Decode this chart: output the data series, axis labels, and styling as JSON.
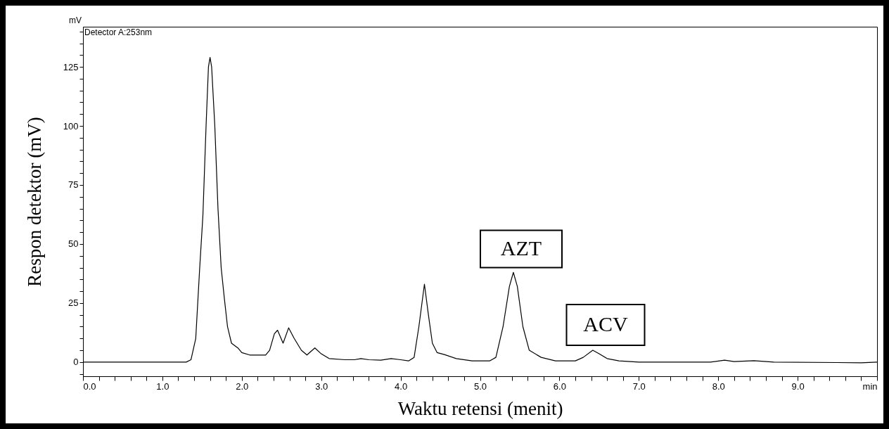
{
  "chart_data": {
    "type": "line",
    "xlabel": "Waktu retensi (menit)",
    "ylabel": "Respon detektor (mV)",
    "annotations": [
      "mV",
      "Detector A:253nm",
      "AZT",
      "ACV"
    ],
    "xlim": [
      0,
      10
    ],
    "ylim": [
      -6,
      142
    ],
    "xticks": [
      {
        "value": 0,
        "label": "0.0"
      },
      {
        "value": 0.2,
        "label": null
      },
      {
        "value": 0.4,
        "label": null
      },
      {
        "value": 0.6,
        "label": null
      },
      {
        "value": 0.8,
        "label": null
      },
      {
        "value": 1,
        "label": "1.0"
      },
      {
        "value": 1.2,
        "label": null
      },
      {
        "value": 1.4,
        "label": null
      },
      {
        "value": 1.6,
        "label": null
      },
      {
        "value": 1.8,
        "label": null
      },
      {
        "value": 2,
        "label": "2.0"
      },
      {
        "value": 2.2,
        "label": null
      },
      {
        "value": 2.4,
        "label": null
      },
      {
        "value": 2.6,
        "label": null
      },
      {
        "value": 2.8,
        "label": null
      },
      {
        "value": 3,
        "label": "3.0"
      },
      {
        "value": 3.2,
        "label": null
      },
      {
        "value": 3.4,
        "label": null
      },
      {
        "value": 3.6,
        "label": null
      },
      {
        "value": 3.8,
        "label": null
      },
      {
        "value": 4,
        "label": "4.0"
      },
      {
        "value": 4.2,
        "label": null
      },
      {
        "value": 4.4,
        "label": null
      },
      {
        "value": 4.6,
        "label": null
      },
      {
        "value": 4.8,
        "label": null
      },
      {
        "value": 5,
        "label": "5.0"
      },
      {
        "value": 5.2,
        "label": null
      },
      {
        "value": 5.4,
        "label": null
      },
      {
        "value": 5.6,
        "label": null
      },
      {
        "value": 5.8,
        "label": null
      },
      {
        "value": 6,
        "label": "6.0"
      },
      {
        "value": 6.2,
        "label": null
      },
      {
        "value": 6.4,
        "label": null
      },
      {
        "value": 6.6,
        "label": null
      },
      {
        "value": 6.8,
        "label": null
      },
      {
        "value": 7,
        "label": "7.0"
      },
      {
        "value": 7.2,
        "label": null
      },
      {
        "value": 7.4,
        "label": null
      },
      {
        "value": 7.6,
        "label": null
      },
      {
        "value": 7.8,
        "label": null
      },
      {
        "value": 8,
        "label": "8.0"
      },
      {
        "value": 8.2,
        "label": null
      },
      {
        "value": 8.4,
        "label": null
      },
      {
        "value": 8.6,
        "label": null
      },
      {
        "value": 8.8,
        "label": null
      },
      {
        "value": 9,
        "label": "9.0"
      },
      {
        "value": 9.2,
        "label": null
      },
      {
        "value": 9.4,
        "label": null
      },
      {
        "value": 9.6,
        "label": null
      },
      {
        "value": 9.8,
        "label": null
      },
      {
        "value": 10,
        "label": "min"
      }
    ],
    "yticks": [
      {
        "value": -5,
        "label": null
      },
      0,
      {
        "value": 5,
        "label": null
      },
      {
        "value": 10,
        "label": null
      },
      {
        "value": 15,
        "label": null
      },
      {
        "value": 20,
        "label": null
      },
      25,
      {
        "value": 30,
        "label": null
      },
      {
        "value": 35,
        "label": null
      },
      {
        "value": 40,
        "label": null
      },
      {
        "value": 45,
        "label": null
      },
      50,
      {
        "value": 55,
        "label": null
      },
      {
        "value": 60,
        "label": null
      },
      {
        "value": 65,
        "label": null
      },
      {
        "value": 70,
        "label": null
      },
      75,
      {
        "value": 80,
        "label": null
      },
      {
        "value": 85,
        "label": null
      },
      {
        "value": 90,
        "label": null
      },
      {
        "value": 95,
        "label": null
      },
      100,
      {
        "value": 105,
        "label": null
      },
      {
        "value": 110,
        "label": null
      },
      {
        "value": 115,
        "label": null
      },
      {
        "value": 120,
        "label": null
      },
      125,
      {
        "value": 130,
        "label": null
      },
      {
        "value": 135,
        "label": null
      },
      {
        "value": 140,
        "label": null
      }
    ],
    "x": [
      0,
      1.3,
      1.36,
      1.42,
      1.47,
      1.51,
      1.55,
      1.58,
      1.6,
      1.62,
      1.66,
      1.7,
      1.74,
      1.78,
      1.82,
      1.87,
      1.95,
      2.0,
      2.1,
      2.3,
      2.35,
      2.41,
      2.45,
      2.52,
      2.59,
      2.66,
      2.75,
      2.82,
      2.92,
      3.0,
      3.1,
      3.3,
      3.42,
      3.5,
      3.6,
      3.75,
      3.88,
      4.0,
      4.1,
      4.17,
      4.23,
      4.3,
      4.35,
      4.4,
      4.46,
      4.55,
      4.7,
      4.9,
      5.12,
      5.2,
      5.29,
      5.37,
      5.42,
      5.47,
      5.54,
      5.62,
      5.77,
      5.95,
      6.2,
      6.3,
      6.42,
      6.5,
      6.6,
      6.75,
      7.0,
      7.5,
      7.9,
      8.08,
      8.2,
      8.45,
      8.7,
      9.5,
      9.8,
      10
    ],
    "series": [
      {
        "color": "#000000",
        "values": [
          0,
          0,
          1,
          10,
          40,
          62,
          100,
          125,
          129,
          125,
          100,
          65,
          40,
          27,
          15,
          8,
          6,
          4,
          3,
          3,
          5,
          12,
          13.5,
          8,
          14.5,
          10,
          5,
          3,
          6,
          3.5,
          1.5,
          1,
          1,
          1.5,
          1,
          0.8,
          1.5,
          1,
          0.5,
          2,
          15,
          33,
          20,
          8,
          4,
          3.2,
          1.5,
          0.5,
          0.5,
          2,
          15,
          32,
          38,
          32,
          15,
          5,
          2,
          0.5,
          0.5,
          2,
          5,
          3.5,
          1.5,
          0.5,
          0,
          0,
          0,
          0.8,
          0.2,
          0.6,
          0,
          -0.2,
          -0.3,
          0
        ]
      }
    ]
  }
}
